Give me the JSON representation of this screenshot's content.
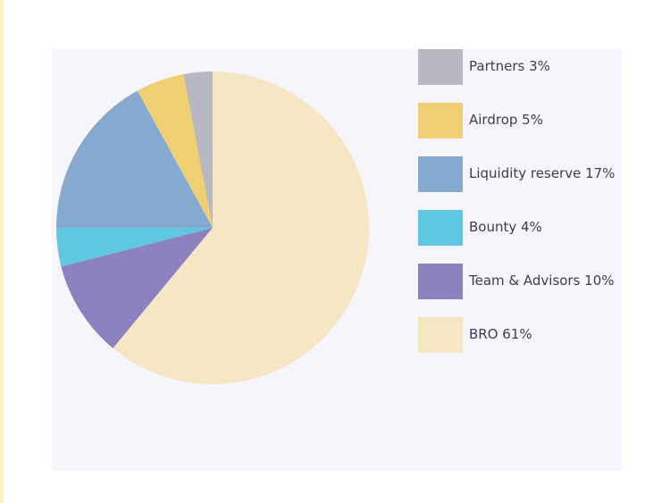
{
  "chart_data": {
    "type": "pie",
    "title": "",
    "slices": [
      {
        "label": "Partners 3%",
        "value": 3,
        "color": "#b8b8c2"
      },
      {
        "label": "Airdrop 5%",
        "value": 5,
        "color": "#f0cf72"
      },
      {
        "label": "Liquidity reserve 17%",
        "value": 17,
        "color": "#86a9cf"
      },
      {
        "label": "Bounty 4%",
        "value": 4,
        "color": "#5fc7e0"
      },
      {
        "label": "Team & Advisors 10%",
        "value": 10,
        "color": "#8e81c0"
      },
      {
        "label": "BRO 61%",
        "value": 61,
        "color": "#f6e6c4"
      }
    ],
    "legend_position": "right"
  }
}
